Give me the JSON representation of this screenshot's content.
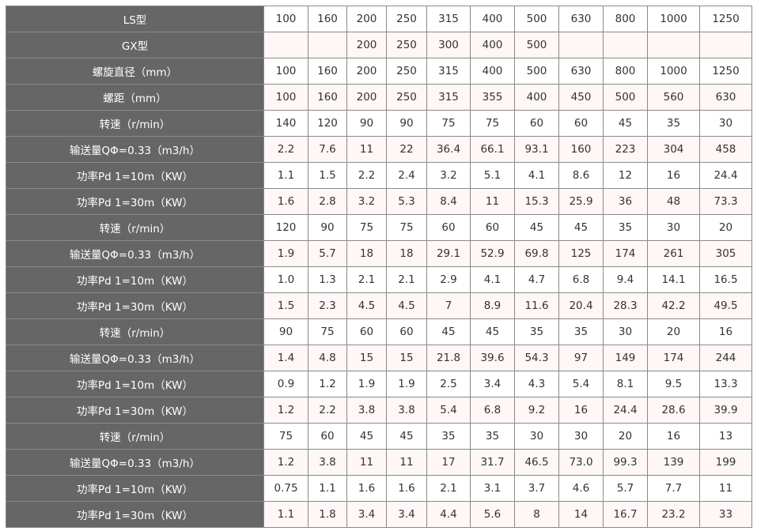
{
  "colors": {
    "header_bg": "#666666",
    "alt_row_bg": "#fff6f6",
    "border": "#8a8a8a"
  },
  "rows": [
    {
      "label": "LS型",
      "values": [
        "100",
        "160",
        "200",
        "250",
        "315",
        "400",
        "500",
        "630",
        "800",
        "1000",
        "1250"
      ]
    },
    {
      "label": "GX型",
      "values": [
        "",
        "",
        "200",
        "250",
        "300",
        "400",
        "500",
        "",
        "",
        "",
        ""
      ]
    },
    {
      "label": "螺旋直径（mm）",
      "values": [
        "100",
        "160",
        "200",
        "250",
        "315",
        "400",
        "500",
        "630",
        "800",
        "1000",
        "1250"
      ]
    },
    {
      "label": "螺距（mm）",
      "values": [
        "100",
        "160",
        "200",
        "250",
        "315",
        "355",
        "400",
        "450",
        "500",
        "560",
        "630"
      ]
    },
    {
      "label": "转速（r/min）",
      "values": [
        "140",
        "120",
        "90",
        "90",
        "75",
        "75",
        "60",
        "60",
        "45",
        "35",
        "30"
      ]
    },
    {
      "label": "输送量QΦ=0.33（m3/h）",
      "values": [
        "2.2",
        "7.6",
        "11",
        "22",
        "36.4",
        "66.1",
        "93.1",
        "160",
        "223",
        "304",
        "458"
      ]
    },
    {
      "label": "功率Pd 1=10m（KW）",
      "values": [
        "1.1",
        "1.5",
        "2.2",
        "2.4",
        "3.2",
        "5.1",
        "4.1",
        "8.6",
        "12",
        "16",
        "24.4"
      ]
    },
    {
      "label": "功率Pd 1=30m（KW）",
      "values": [
        "1.6",
        "2.8",
        "3.2",
        "5.3",
        "8.4",
        "11",
        "15.3",
        "25.9",
        "36",
        "48",
        "73.3"
      ]
    },
    {
      "label": "转速（r/min）",
      "values": [
        "120",
        "90",
        "75",
        "75",
        "60",
        "60",
        "45",
        "45",
        "35",
        "30",
        "20"
      ]
    },
    {
      "label": "输送量QΦ=0.33（m3/h）",
      "values": [
        "1.9",
        "5.7",
        "18",
        "18",
        "29.1",
        "52.9",
        "69.8",
        "125",
        "174",
        "261",
        "305"
      ]
    },
    {
      "label": "功率Pd 1=10m（KW）",
      "values": [
        "1.0",
        "1.3",
        "2.1",
        "2.1",
        "2.9",
        "4.1",
        "4.7",
        "6.8",
        "9.4",
        "14.1",
        "16.5"
      ]
    },
    {
      "label": "功率Pd 1=30m（KW）",
      "values": [
        "1.5",
        "2.3",
        "4.5",
        "4.5",
        "7",
        "8.9",
        "11.6",
        "20.4",
        "28.3",
        "42.2",
        "49.5"
      ]
    },
    {
      "label": "转速（r/min）",
      "values": [
        "90",
        "75",
        "60",
        "60",
        "45",
        "45",
        "35",
        "35",
        "30",
        "20",
        "16"
      ]
    },
    {
      "label": "输送量QΦ=0.33（m3/h）",
      "values": [
        "1.4",
        "4.8",
        "15",
        "15",
        "21.8",
        "39.6",
        "54.3",
        "97",
        "149",
        "174",
        "244"
      ]
    },
    {
      "label": "功率Pd 1=10m（KW）",
      "values": [
        "0.9",
        "1.2",
        "1.9",
        "1.9",
        "2.5",
        "3.4",
        "4.3",
        "5.4",
        "8.1",
        "9.5",
        "13.3"
      ]
    },
    {
      "label": "功率Pd 1=30m（KW）",
      "values": [
        "1.2",
        "2.2",
        "3.8",
        "3.8",
        "5.4",
        "6.8",
        "9.2",
        "16",
        "24.4",
        "28.6",
        "39.9"
      ]
    },
    {
      "label": "转速（r/min）",
      "values": [
        "75",
        "60",
        "45",
        "45",
        "35",
        "35",
        "30",
        "30",
        "20",
        "16",
        "13"
      ]
    },
    {
      "label": "输送量QΦ=0.33（m3/h）",
      "values": [
        "1.2",
        "3.8",
        "11",
        "11",
        "17",
        "31.7",
        "46.5",
        "73.0",
        "99.3",
        "139",
        "199"
      ]
    },
    {
      "label": "功率Pd 1=10m（KW）",
      "values": [
        "0.75",
        "1.1",
        "1.6",
        "1.6",
        "2.1",
        "3.1",
        "3.7",
        "4.6",
        "5.7",
        "7.7",
        "11"
      ]
    },
    {
      "label": "功率Pd 1=30m（KW）",
      "values": [
        "1.1",
        "1.8",
        "3.4",
        "3.4",
        "4.4",
        "5.6",
        "8",
        "14",
        "16.7",
        "23.2",
        "33"
      ]
    }
  ]
}
